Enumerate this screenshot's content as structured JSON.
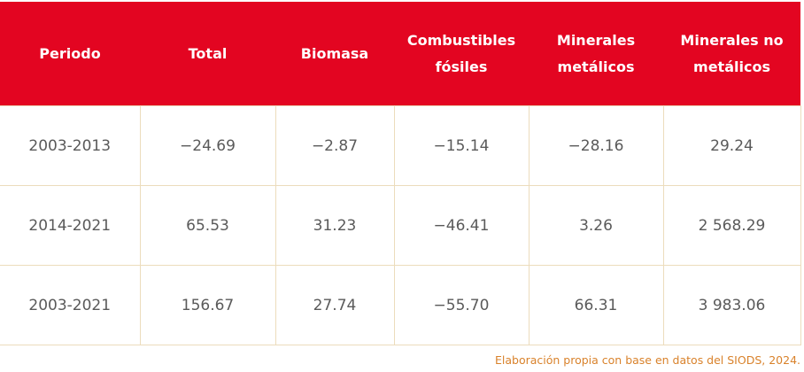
{
  "table": {
    "header": [
      "Periodo",
      "Total",
      "Biomasa",
      "Combustibles fósiles",
      "Minerales metálicos",
      "Minerales no metálicos"
    ],
    "rows": [
      [
        "2003-2013",
        "−24.69",
        "−2.87",
        "−15.14",
        "−28.16",
        "29.24"
      ],
      [
        "2014-2021",
        "65.53",
        "31.23",
        "−46.41",
        "3.26",
        "2 568.29"
      ],
      [
        "2003-2021",
        "156.67",
        "27.74",
        "−55.70",
        "66.31",
        "3 983.06"
      ]
    ]
  },
  "footer": {
    "source": "Elaboración propia con base en datos del SIODS, 2024."
  }
}
